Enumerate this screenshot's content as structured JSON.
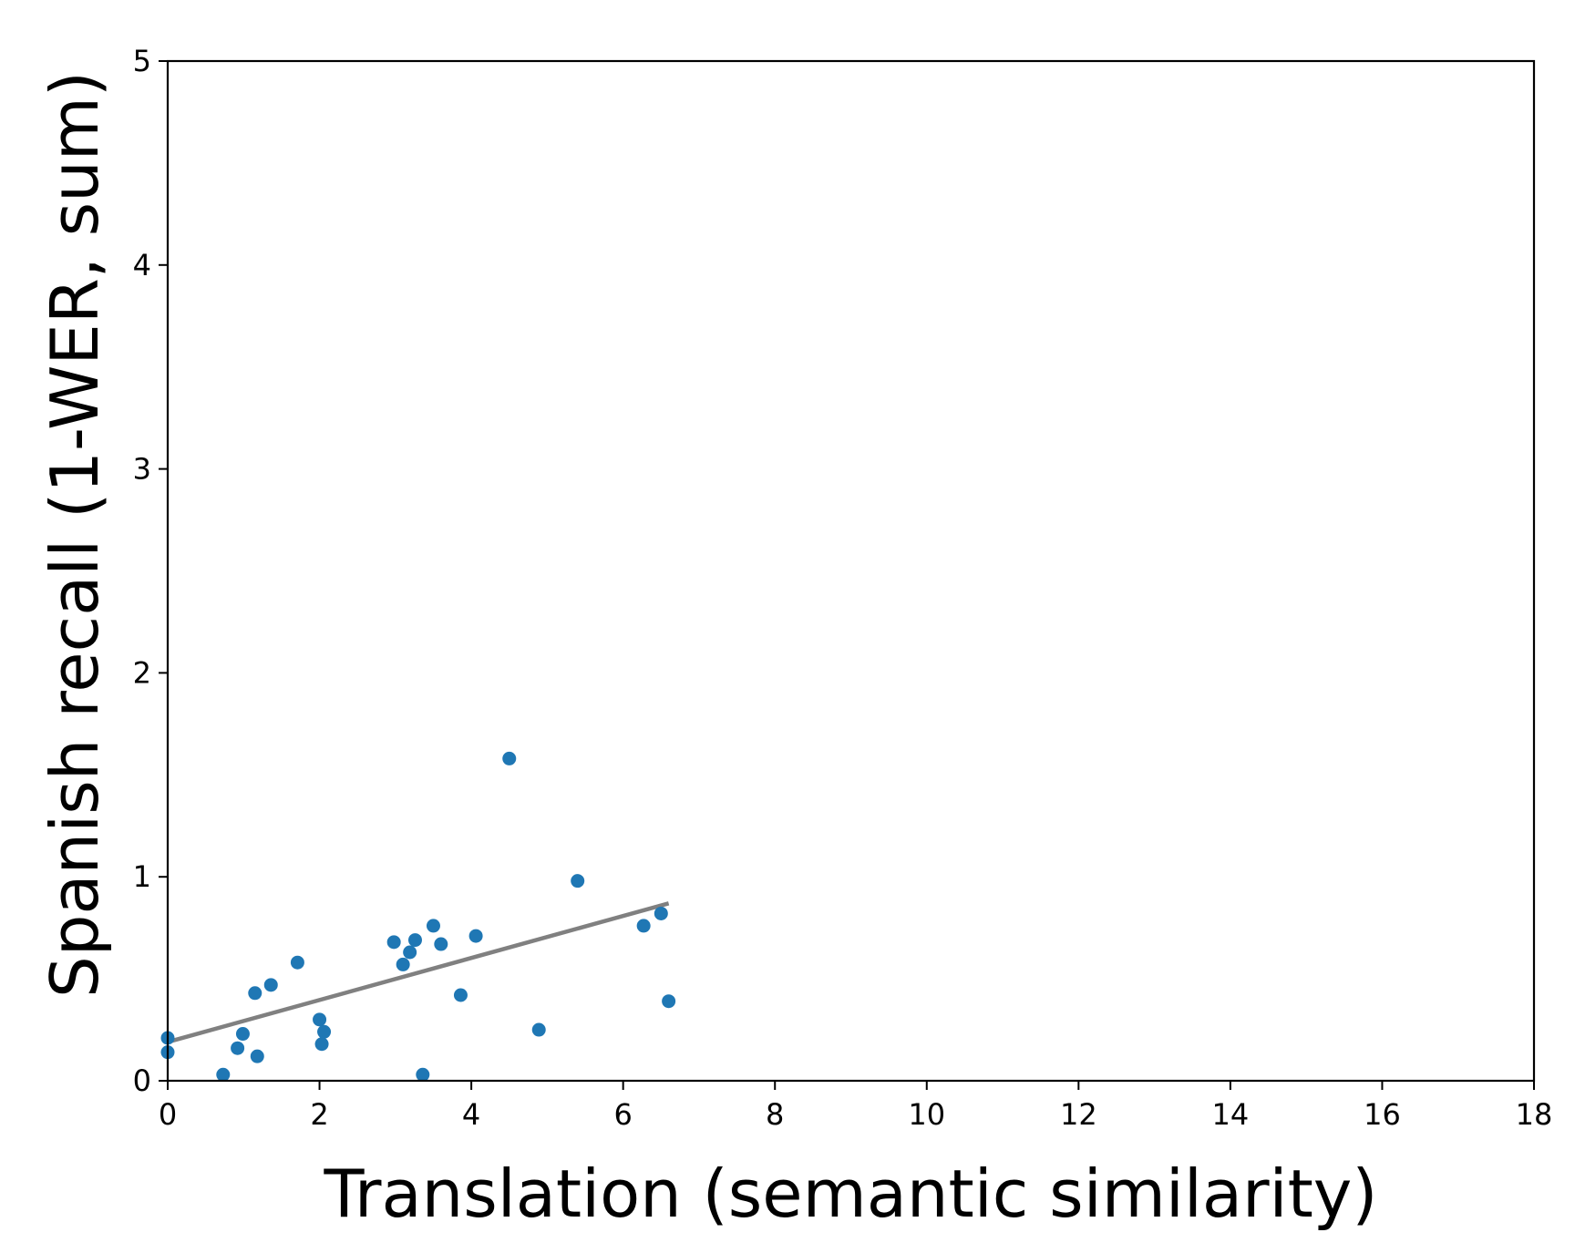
{
  "chart_data": {
    "type": "scatter",
    "xlabel": "Translation (semantic similarity)",
    "ylabel": "Spanish recall (1-WER, sum)",
    "xlim": [
      0,
      18
    ],
    "ylim": [
      0,
      5
    ],
    "x_ticks": [
      "0",
      "2",
      "4",
      "6",
      "8",
      "10",
      "12",
      "14",
      "16",
      "18"
    ],
    "y_ticks": [
      "0",
      "1",
      "2",
      "3",
      "4",
      "5"
    ],
    "grid": false,
    "legend": "none",
    "point_color": "#1f77b4",
    "fit_line_color": "#808080",
    "points": [
      {
        "x": 0.0,
        "y": 0.21
      },
      {
        "x": 0.0,
        "y": 0.14
      },
      {
        "x": 0.73,
        "y": 0.03
      },
      {
        "x": 0.92,
        "y": 0.16
      },
      {
        "x": 0.99,
        "y": 0.23
      },
      {
        "x": 1.15,
        "y": 0.43
      },
      {
        "x": 1.18,
        "y": 0.12
      },
      {
        "x": 1.36,
        "y": 0.47
      },
      {
        "x": 1.71,
        "y": 0.58
      },
      {
        "x": 2.0,
        "y": 0.3
      },
      {
        "x": 2.03,
        "y": 0.18
      },
      {
        "x": 2.06,
        "y": 0.24
      },
      {
        "x": 2.98,
        "y": 0.68
      },
      {
        "x": 3.1,
        "y": 0.57
      },
      {
        "x": 3.19,
        "y": 0.63
      },
      {
        "x": 3.26,
        "y": 0.69
      },
      {
        "x": 3.36,
        "y": 0.03
      },
      {
        "x": 3.5,
        "y": 0.76
      },
      {
        "x": 3.6,
        "y": 0.67
      },
      {
        "x": 3.86,
        "y": 0.42
      },
      {
        "x": 4.06,
        "y": 0.71
      },
      {
        "x": 4.5,
        "y": 1.58
      },
      {
        "x": 4.89,
        "y": 0.25
      },
      {
        "x": 5.4,
        "y": 0.98
      },
      {
        "x": 6.27,
        "y": 0.76
      },
      {
        "x": 6.5,
        "y": 0.82
      },
      {
        "x": 6.6,
        "y": 0.39
      }
    ],
    "fit_line": {
      "x": [
        0,
        6.6
      ],
      "y": [
        0.19,
        0.87
      ]
    }
  }
}
